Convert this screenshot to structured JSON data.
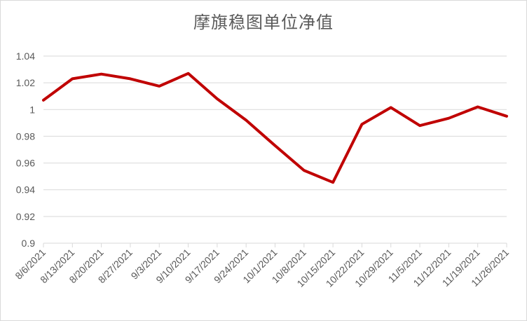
{
  "chart_data": {
    "type": "line",
    "title": "摩旗稳图单位净值",
    "xlabel": "",
    "ylabel": "",
    "categories": [
      "8/6/2021",
      "8/13/2021",
      "8/20/2021",
      "8/27/2021",
      "9/3/2021",
      "9/10/2021",
      "9/17/2021",
      "9/24/2021",
      "10/1/2021",
      "10/8/2021",
      "10/15/2021",
      "10/22/2021",
      "10/29/2021",
      "11/5/2021",
      "11/12/2021",
      "11/19/2021",
      "11/26/2021"
    ],
    "series": [
      {
        "values": [
          1.007,
          1.023,
          1.0265,
          1.023,
          1.0175,
          1.027,
          1.008,
          0.992,
          0.973,
          0.9545,
          0.9455,
          0.989,
          1.0015,
          0.988,
          0.9935,
          1.002,
          0.995
        ],
        "color": "#c00000"
      }
    ],
    "ylim": [
      0.9,
      1.04
    ],
    "yticks": [
      "0.9",
      "0.92",
      "0.94",
      "0.96",
      "0.98",
      "1",
      "1.02",
      "1.04"
    ],
    "grid": true,
    "legend": "none"
  }
}
